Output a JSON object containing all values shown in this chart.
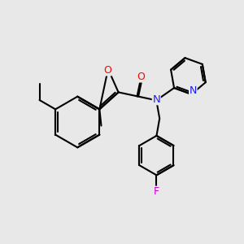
{
  "bg": "#e8e8e8",
  "bc": "#000000",
  "lw": 1.5,
  "colors": {
    "O": "#ff0000",
    "N": "#2020ff",
    "F": "#cc00cc",
    "Npyr": "#1a1aee"
  },
  "figsize": [
    3.0,
    3.0
  ],
  "dpi": 100
}
